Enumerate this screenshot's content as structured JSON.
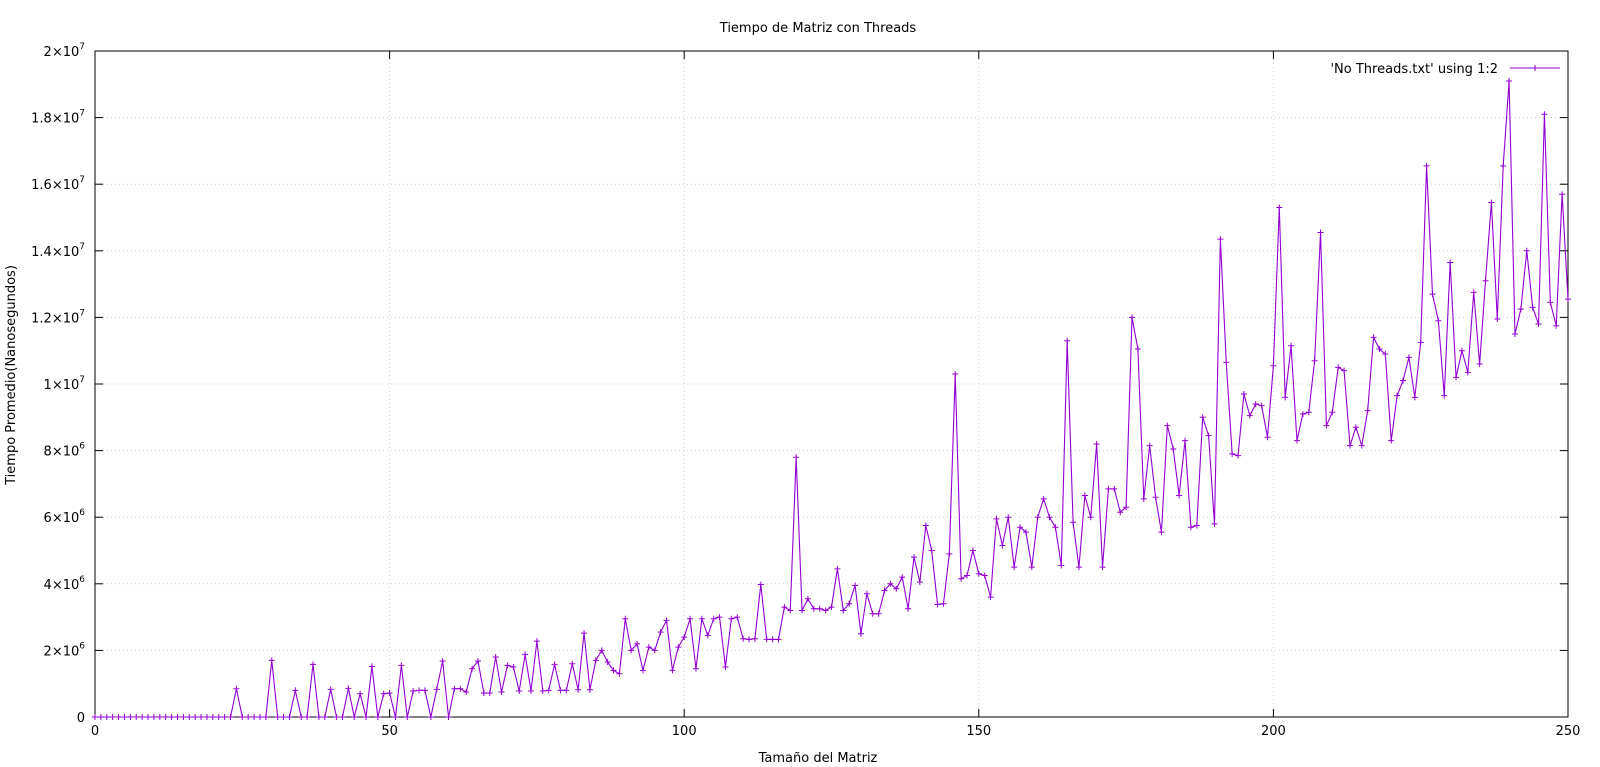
{
  "chart_data": {
    "type": "line",
    "title": "Tiempo de Matriz con Threads",
    "xlabel": "Tamaño del Matriz",
    "ylabel": "Tiempo Promedio(Nanosegundos)",
    "xlim": [
      0,
      250
    ],
    "ylim": [
      0,
      20000000
    ],
    "x_ticks": [
      0,
      50,
      100,
      150,
      200,
      250
    ],
    "x_tick_labels": [
      "0",
      "50",
      "100",
      "150",
      "200",
      "250"
    ],
    "y_ticks": [
      0,
      2000000,
      4000000,
      6000000,
      8000000,
      10000000,
      12000000,
      14000000,
      16000000,
      18000000,
      20000000
    ],
    "y_tick_labels": [
      {
        "base": "0",
        "exp": ""
      },
      {
        "base": "2×10",
        "exp": "6"
      },
      {
        "base": "4×10",
        "exp": "6"
      },
      {
        "base": "6×10",
        "exp": "6"
      },
      {
        "base": "8×10",
        "exp": "6"
      },
      {
        "base": "1×10",
        "exp": "7"
      },
      {
        "base": "1.2×10",
        "exp": "7"
      },
      {
        "base": "1.4×10",
        "exp": "7"
      },
      {
        "base": "1.6×10",
        "exp": "7"
      },
      {
        "base": "1.8×10",
        "exp": "7"
      },
      {
        "base": "2×10",
        "exp": "7"
      }
    ],
    "grid": true,
    "legend": "top-right",
    "series": [
      {
        "name": "'No Threads.txt' using 1:2",
        "color": "#9400d3",
        "marker": "plus",
        "x": [
          0,
          1,
          2,
          3,
          4,
          5,
          6,
          7,
          8,
          9,
          10,
          11,
          12,
          13,
          14,
          15,
          16,
          17,
          18,
          19,
          20,
          21,
          22,
          23,
          24,
          25,
          26,
          27,
          28,
          29,
          30,
          31,
          32,
          33,
          34,
          35,
          36,
          37,
          38,
          39,
          40,
          41,
          42,
          43,
          44,
          45,
          46,
          47,
          48,
          49,
          50,
          51,
          52,
          53,
          54,
          55,
          56,
          57,
          58,
          59,
          60,
          61,
          62,
          63,
          64,
          65,
          66,
          67,
          68,
          69,
          70,
          71,
          72,
          73,
          74,
          75,
          76,
          77,
          78,
          79,
          80,
          81,
          82,
          83,
          84,
          85,
          86,
          87,
          88,
          89,
          90,
          91,
          92,
          93,
          94,
          95,
          96,
          97,
          98,
          99,
          100,
          101,
          102,
          103,
          104,
          105,
          106,
          107,
          108,
          109,
          110,
          111,
          112,
          113,
          114,
          115,
          116,
          117,
          118,
          119,
          120,
          121,
          122,
          123,
          124,
          125,
          126,
          127,
          128,
          129,
          130,
          131,
          132,
          133,
          134,
          135,
          136,
          137,
          138,
          139,
          140,
          141,
          142,
          143,
          144,
          145,
          146,
          147,
          148,
          149,
          150,
          151,
          152,
          153,
          154,
          155,
          156,
          157,
          158,
          159,
          160,
          161,
          162,
          163,
          164,
          165,
          166,
          167,
          168,
          169,
          170,
          171,
          172,
          173,
          174,
          175,
          176,
          177,
          178,
          179,
          180,
          181,
          182,
          183,
          184,
          185,
          186,
          187,
          188,
          189,
          190,
          191,
          192,
          193,
          194,
          195,
          196,
          197,
          198,
          199,
          200,
          201,
          202,
          203,
          204,
          205,
          206,
          207,
          208,
          209,
          210,
          211,
          212,
          213,
          214,
          215,
          216,
          217,
          218,
          219,
          220,
          221,
          222,
          223,
          224,
          225,
          226,
          227,
          228,
          229,
          230,
          231,
          232,
          233,
          234,
          235,
          236,
          237,
          238,
          239,
          240,
          241,
          242,
          243,
          244,
          245,
          246,
          247,
          248,
          249,
          250
        ],
        "y": [
          0,
          0,
          0,
          0,
          0,
          0,
          0,
          0,
          0,
          0,
          0,
          0,
          0,
          0,
          0,
          0,
          0,
          0,
          0,
          0,
          0,
          0,
          0,
          0,
          850000,
          0,
          0,
          0,
          0,
          0,
          1700000,
          0,
          0,
          0,
          800000,
          0,
          0,
          1580000,
          0,
          0,
          830000,
          0,
          0,
          860000,
          0,
          700000,
          0,
          1520000,
          0,
          700000,
          720000,
          0,
          1550000,
          0,
          780000,
          800000,
          800000,
          0,
          830000,
          1680000,
          0,
          850000,
          850000,
          750000,
          1450000,
          1680000,
          720000,
          720000,
          1800000,
          750000,
          1550000,
          1500000,
          780000,
          1880000,
          780000,
          2280000,
          780000,
          800000,
          1580000,
          800000,
          800000,
          1600000,
          820000,
          2520000,
          820000,
          1700000,
          2000000,
          1650000,
          1400000,
          1300000,
          2950000,
          2000000,
          2200000,
          1400000,
          2100000,
          2000000,
          2550000,
          2900000,
          1400000,
          2100000,
          2400000,
          2950000,
          1450000,
          2950000,
          2450000,
          2950000,
          3000000,
          1500000,
          2950000,
          3000000,
          2350000,
          2330000,
          2350000,
          3980000,
          2330000,
          2330000,
          2330000,
          3300000,
          3200000,
          7800000,
          3200000,
          3550000,
          3250000,
          3250000,
          3200000,
          3300000,
          4450000,
          3200000,
          3400000,
          3950000,
          2500000,
          3700000,
          3100000,
          3100000,
          3800000,
          4000000,
          3850000,
          4200000,
          3250000,
          4800000,
          4050000,
          5750000,
          5000000,
          3380000,
          3400000,
          4900000,
          10300000,
          4150000,
          4250000,
          5000000,
          4300000,
          4250000,
          3600000,
          5950000,
          5150000,
          6000000,
          4500000,
          5700000,
          5550000,
          4500000,
          6000000,
          6550000,
          6000000,
          5700000,
          4550000,
          11300000,
          5850000,
          4500000,
          6650000,
          6000000,
          8200000,
          4500000,
          6850000,
          6850000,
          6150000,
          6300000,
          12000000,
          11050000,
          6550000,
          8150000,
          6600000,
          5550000,
          8750000,
          8050000,
          6650000,
          8300000,
          5700000,
          5750000,
          9000000,
          8450000,
          5800000,
          14350000,
          10650000,
          7900000,
          7850000,
          9700000,
          9050000,
          9400000,
          9350000,
          8400000,
          10550000,
          15300000,
          9600000,
          11150000,
          8300000,
          9100000,
          9150000,
          10700000,
          14550000,
          8750000,
          9150000,
          10500000,
          10400000,
          8150000,
          8700000,
          8150000,
          9200000,
          11400000,
          11050000,
          10900000,
          8300000,
          9650000,
          10100000,
          10800000,
          9600000,
          11250000,
          16550000,
          12700000,
          11900000,
          9650000,
          13650000,
          10200000,
          11000000,
          10350000,
          12750000,
          10600000,
          13100000,
          15450000,
          11950000,
          16550000,
          19100000,
          11500000,
          12250000,
          14000000,
          12300000,
          11800000,
          18100000,
          12450000,
          11750000,
          15700000,
          12550000
        ]
      }
    ]
  }
}
